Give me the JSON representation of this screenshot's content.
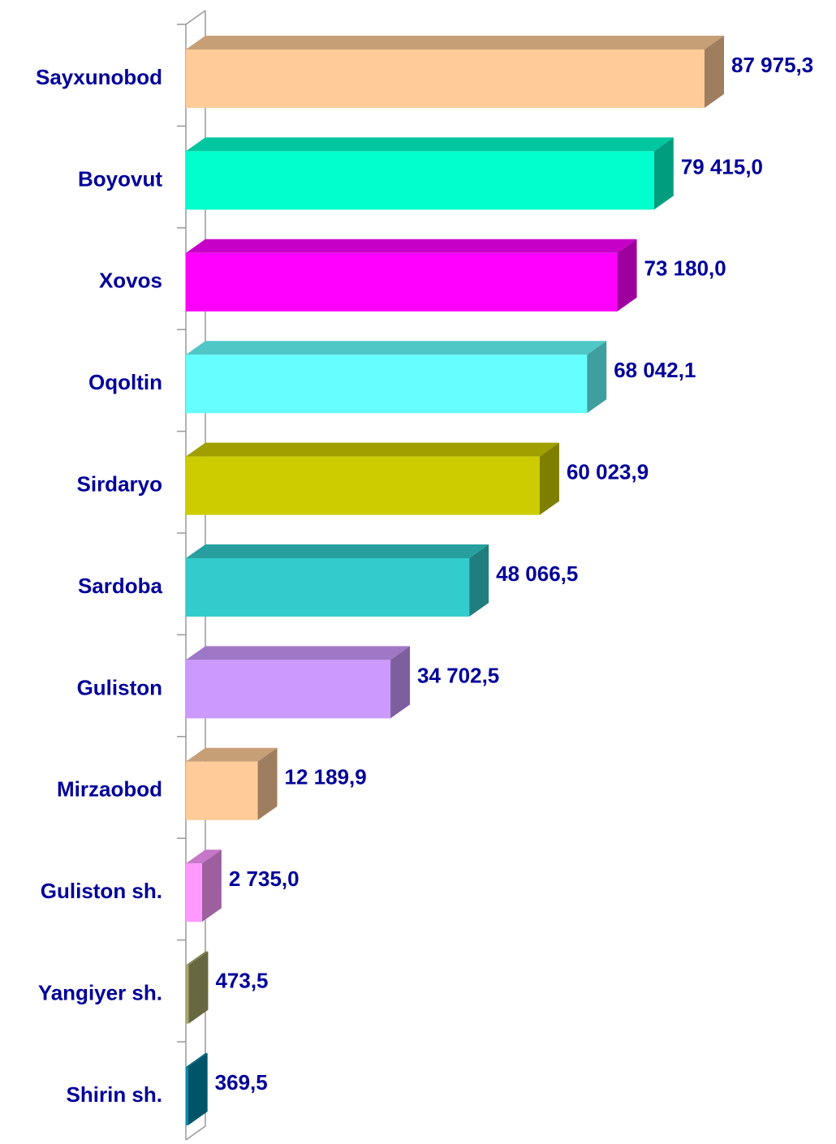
{
  "chart_data": {
    "type": "bar3d-horizontal",
    "categories": [
      "Sayxunobod",
      "Boyovut",
      "Xovos",
      "Oqoltin",
      "Sirdaryo",
      "Sardoba",
      "Guliston",
      "Mirzaobod",
      "Guliston sh.",
      "Yangiyer sh.",
      "Shirin sh."
    ],
    "values": [
      87975.3,
      79415.0,
      73180.0,
      68042.1,
      60023.9,
      48066.5,
      34702.5,
      12189.9,
      2735.0,
      473.5,
      369.5
    ],
    "value_labels": [
      "87 975,3",
      "79 415,0",
      "73 180,0",
      "68 042,1",
      "60 023,9",
      "48 066,5",
      "34 702,5",
      "12 189,9",
      "2 735,0",
      "473,5",
      "369,5"
    ],
    "colors": [
      "#FFCC99",
      "#00FFCC",
      "#FF00FF",
      "#66FFFF",
      "#CCCC00",
      "#33CCCC",
      "#CC99FF",
      "#FFCC99",
      "#FF99FF",
      "#A6A66A",
      "#0088AA"
    ]
  }
}
